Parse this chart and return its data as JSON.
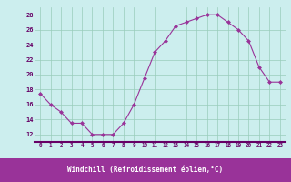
{
  "x": [
    0,
    1,
    2,
    3,
    4,
    5,
    6,
    7,
    8,
    9,
    10,
    11,
    12,
    13,
    14,
    15,
    16,
    17,
    18,
    19,
    20,
    21,
    22,
    23
  ],
  "y": [
    17.5,
    16.0,
    15.0,
    13.5,
    13.5,
    12.0,
    12.0,
    12.0,
    13.5,
    16.0,
    19.5,
    23.0,
    24.5,
    26.5,
    27.0,
    27.5,
    28.0,
    28.0,
    27.0,
    26.0,
    24.5,
    21.0,
    19.0,
    19.0
  ],
  "xlabel": "Windchill (Refroidissement éolien,°C)",
  "ylim": [
    11,
    29
  ],
  "xlim": [
    -0.5,
    23.5
  ],
  "yticks": [
    12,
    14,
    16,
    18,
    20,
    22,
    24,
    26,
    28
  ],
  "xticks": [
    0,
    1,
    2,
    3,
    4,
    5,
    6,
    7,
    8,
    9,
    10,
    11,
    12,
    13,
    14,
    15,
    16,
    17,
    18,
    19,
    20,
    21,
    22,
    23
  ],
  "line_color": "#993399",
  "marker_color": "#993399",
  "bg_color": "#cceeee",
  "grid_color": "#99ccbb",
  "tick_label_color": "#660066",
  "xlabel_color": "white",
  "xlabel_bg": "#993399",
  "axis_line_color": "#660066"
}
